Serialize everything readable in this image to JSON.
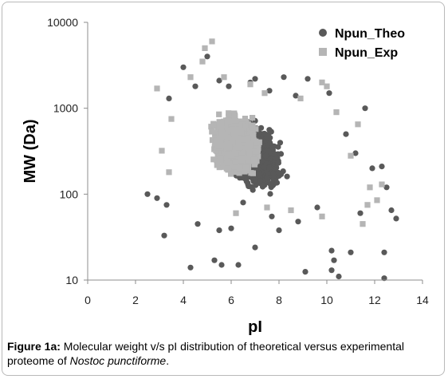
{
  "chart_data": {
    "type": "scatter",
    "xlabel": "pI",
    "ylabel": "MW (Da)",
    "xlim": [
      0,
      14
    ],
    "ylim": [
      10,
      10000
    ],
    "y_scale": "log",
    "x_ticks": [
      "0",
      "2",
      "4",
      "6",
      "8",
      "10",
      "12",
      "14"
    ],
    "y_ticks": [
      "10",
      "100",
      "1000",
      "10000"
    ],
    "grid": false,
    "legend_position": "top-right",
    "series": [
      {
        "name": "Npun_Theo",
        "color": "#595959",
        "marker": "circle",
        "points": [
          [
            4.3,
            14
          ],
          [
            5.6,
            15
          ],
          [
            6.3,
            15
          ],
          [
            5.3,
            17
          ],
          [
            7.0,
            24
          ],
          [
            3.2,
            33
          ],
          [
            10.2,
            22
          ],
          [
            10.3,
            17
          ],
          [
            11.0,
            21
          ],
          [
            12.4,
            21
          ],
          [
            9.1,
            12.5
          ],
          [
            10.5,
            11
          ],
          [
            12.4,
            10.5
          ],
          [
            10.2,
            13
          ],
          [
            6.0,
            40
          ],
          [
            5.5,
            38
          ],
          [
            7.7,
            55
          ],
          [
            8.8,
            48
          ],
          [
            12.9,
            52
          ],
          [
            4.0,
            3000
          ],
          [
            4.5,
            1800
          ],
          [
            5.5,
            2100
          ],
          [
            7.0,
            2200
          ],
          [
            8.2,
            2300
          ],
          [
            9.2,
            2200
          ],
          [
            10.1,
            1500
          ],
          [
            11.6,
            1000
          ],
          [
            12.3,
            210
          ],
          [
            12.7,
            65
          ],
          [
            2.5,
            100
          ],
          [
            2.9,
            90
          ],
          [
            3.4,
            1300
          ],
          [
            5.9,
            1800
          ],
          [
            6.8,
            2000
          ],
          [
            7.6,
            1600
          ],
          [
            8.7,
            1400
          ],
          [
            10.8,
            500
          ],
          [
            11.2,
            300
          ],
          [
            11.9,
            200
          ],
          [
            12.5,
            120
          ],
          [
            3.3,
            75
          ],
          [
            4.6,
            45
          ],
          [
            6.5,
            80
          ],
          [
            9.6,
            70
          ],
          [
            11.4,
            60
          ],
          [
            8.0,
            38
          ],
          [
            5.0,
            4000
          ]
        ]
      },
      {
        "name": "Npun_Exp",
        "color": "#b5b5b5",
        "marker": "square",
        "points": [
          [
            5.2,
            6000
          ],
          [
            4.9,
            5000
          ],
          [
            4.8,
            3500
          ],
          [
            4.3,
            2300
          ],
          [
            5.7,
            2300
          ],
          [
            6.8,
            1900
          ],
          [
            9.8,
            2000
          ],
          [
            10.0,
            1800
          ],
          [
            11.3,
            650
          ],
          [
            11.0,
            280
          ],
          [
            11.8,
            120
          ],
          [
            2.9,
            1700
          ],
          [
            3.5,
            750
          ],
          [
            7.4,
            1500
          ],
          [
            8.9,
            1300
          ],
          [
            10.4,
            900
          ],
          [
            11.5,
            45
          ],
          [
            11.7,
            75
          ],
          [
            12.1,
            85
          ],
          [
            12.3,
            130
          ],
          [
            6.2,
            60
          ],
          [
            7.5,
            70
          ],
          [
            8.5,
            65
          ],
          [
            9.8,
            55
          ],
          [
            3.1,
            320
          ],
          [
            3.4,
            180
          ]
        ]
      }
    ]
  },
  "caption": {
    "label": "Figure 1a:",
    "text_before": "Molecular weight v/s pI distribution of theoretical versus experimental proteome of",
    "organism": "Nostoc punctiforme",
    "text_after": "."
  }
}
